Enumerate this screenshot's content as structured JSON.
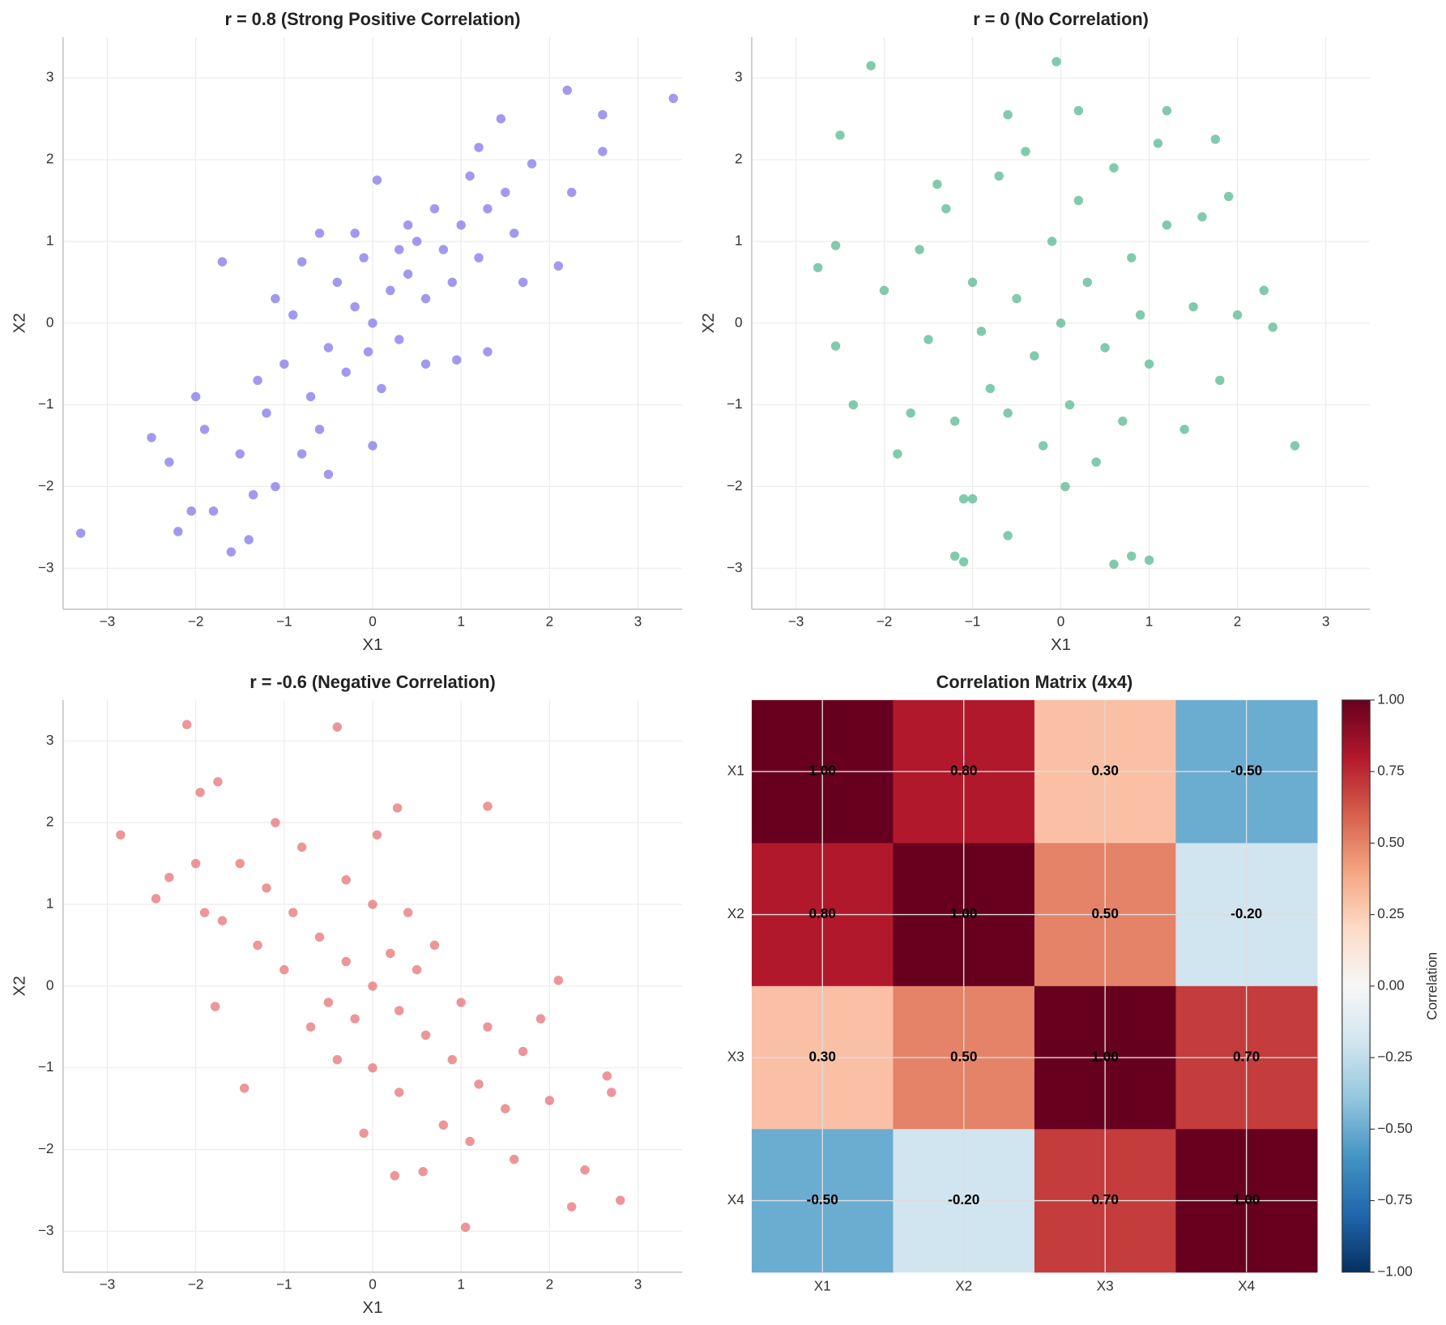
{
  "chart_data": [
    {
      "type": "scatter",
      "title": "r = 0.8 (Strong Positive Correlation)",
      "x_label": "X1",
      "y_label": "X2",
      "color": "#7b6ee8",
      "grid": true,
      "xlim": [
        -3.5,
        3.5
      ],
      "ylim": [
        -3.5,
        3.5
      ],
      "xticks": [
        {
          "value": -3,
          "label": "−3"
        },
        {
          "value": -2,
          "label": "−2"
        },
        {
          "value": -1,
          "label": "−1"
        },
        0,
        1,
        2,
        3
      ],
      "yticks": [
        {
          "value": -3,
          "label": "−3"
        },
        {
          "value": -2,
          "label": "−2"
        },
        {
          "value": -1,
          "label": "−1"
        },
        0,
        1,
        2,
        3
      ],
      "x": [
        -3.3,
        3.4,
        2.2,
        2.6,
        2.6,
        -1.6,
        -1.4,
        -1.7,
        -2.5,
        -2.3,
        -2.2,
        -2.05,
        -1.8,
        -2.0,
        1.45,
        1.2,
        2.1,
        0.05,
        -0.6,
        1.8,
        2.25,
        1.3,
        0.95,
        0.0,
        -0.5,
        -1.35,
        -1.1,
        -0.8,
        -1.0,
        -0.5,
        -0.2,
        0.0,
        0.2,
        0.4,
        0.6,
        0.8,
        1.0,
        1.2,
        1.5,
        -0.3,
        -0.7,
        -1.2,
        -1.5,
        0.3,
        0.5,
        0.7,
        -0.1,
        -0.4,
        -0.9,
        1.1,
        1.6,
        0.9,
        -1.3,
        -0.6,
        0.1,
        -0.2,
        0.6,
        1.7,
        -1.9,
        -0.8,
        0.3,
        -0.05,
        1.3,
        0.4,
        -1.1
      ],
      "values": [
        -2.57,
        2.75,
        2.85,
        2.55,
        2.1,
        -2.8,
        -2.65,
        0.75,
        -1.4,
        -1.7,
        -2.55,
        -2.3,
        -2.3,
        -0.9,
        2.5,
        2.15,
        0.7,
        1.75,
        1.1,
        1.95,
        1.6,
        -0.35,
        -0.45,
        -1.5,
        -1.85,
        -2.1,
        -2.0,
        0.75,
        -0.5,
        -0.3,
        0.2,
        0.0,
        0.4,
        0.6,
        0.3,
        0.9,
        1.2,
        0.8,
        1.6,
        -0.6,
        -0.9,
        -1.1,
        -1.6,
        -0.2,
        1.0,
        1.4,
        0.8,
        0.5,
        0.1,
        1.8,
        1.1,
        0.5,
        -0.7,
        -1.3,
        -0.8,
        1.1,
        -0.5,
        0.5,
        -1.3,
        -1.6,
        0.9,
        -0.35,
        1.4,
        1.2,
        0.3
      ]
    },
    {
      "type": "scatter",
      "title": "r = 0 (No Correlation)",
      "x_label": "X1",
      "y_label": "X2",
      "color": "#4db38a",
      "grid": true,
      "xlim": [
        -3.5,
        3.5
      ],
      "ylim": [
        -3.5,
        3.5
      ],
      "xticks": [
        {
          "value": -3,
          "label": "−3"
        },
        {
          "value": -2,
          "label": "−2"
        },
        {
          "value": -1,
          "label": "−1"
        },
        0,
        1,
        2,
        3
      ],
      "yticks": [
        {
          "value": -3,
          "label": "−3"
        },
        {
          "value": -2,
          "label": "−2"
        },
        {
          "value": -1,
          "label": "−1"
        },
        0,
        1,
        2,
        3
      ],
      "x": [
        -2.15,
        -0.05,
        -2.5,
        -2.75,
        2.65,
        -0.6,
        0.6,
        0.8,
        1.0,
        -1.2,
        -1.1,
        1.75,
        2.4,
        2.3,
        -2.35,
        -1.85,
        0.05,
        -1.1,
        -1.0,
        -0.6,
        0.2,
        1.2,
        -2.55,
        -2.55,
        1.9,
        0.0,
        0.3,
        -0.3,
        0.5,
        -0.5,
        0.8,
        -0.8,
        1.0,
        -1.0,
        1.2,
        -1.2,
        0.2,
        -0.2,
        1.5,
        -1.5,
        0.6,
        -0.7,
        1.4,
        -1.3,
        2.0,
        -2.0,
        0.1,
        -0.1,
        0.9,
        -0.9,
        1.8,
        -1.7,
        0.4,
        -0.4,
        1.1,
        -1.4,
        1.6,
        -1.6,
        0.7,
        -0.6
      ],
      "values": [
        3.15,
        3.2,
        2.3,
        0.68,
        -1.5,
        -2.6,
        -2.95,
        -2.85,
        -2.9,
        -2.85,
        -2.92,
        2.25,
        -0.05,
        0.4,
        -1.0,
        -1.6,
        -2.0,
        -2.15,
        -2.15,
        2.55,
        2.6,
        2.6,
        -0.28,
        0.95,
        1.55,
        0.0,
        0.5,
        -0.4,
        -0.3,
        0.3,
        0.8,
        -0.8,
        -0.5,
        0.5,
        1.2,
        -1.2,
        1.5,
        -1.5,
        0.2,
        -0.2,
        1.9,
        1.8,
        -1.3,
        1.4,
        0.1,
        0.4,
        -1.0,
        1.0,
        0.1,
        -0.1,
        -0.7,
        -1.1,
        -1.7,
        2.1,
        2.2,
        1.7,
        1.3,
        0.9,
        -1.2,
        -1.1
      ]
    },
    {
      "type": "scatter",
      "title": "r = -0.6 (Negative Correlation)",
      "x_label": "X1",
      "y_label": "X2",
      "color": "#e46a6e",
      "grid": true,
      "xlim": [
        -3.5,
        3.5
      ],
      "ylim": [
        -3.5,
        3.5
      ],
      "xticks": [
        {
          "value": -3,
          "label": "−3"
        },
        {
          "value": -2,
          "label": "−2"
        },
        {
          "value": -1,
          "label": "−1"
        },
        0,
        1,
        2,
        3
      ],
      "yticks": [
        {
          "value": -3,
          "label": "−3"
        },
        {
          "value": -2,
          "label": "−2"
        },
        {
          "value": -1,
          "label": "−1"
        },
        0,
        1,
        2,
        3
      ],
      "x": [
        -2.85,
        -2.1,
        -0.4,
        -1.95,
        -1.75,
        2.8,
        1.05,
        2.25,
        2.4,
        1.3,
        0.28,
        -1.45,
        -1.78,
        2.1,
        2.65,
        2.7,
        0.25,
        0.57,
        1.6,
        -2.45,
        -2.3,
        0.0,
        -0.3,
        0.3,
        -0.6,
        0.6,
        -0.9,
        0.9,
        -1.2,
        1.2,
        -1.5,
        1.5,
        -0.2,
        0.2,
        -0.5,
        0.5,
        -1.0,
        1.0,
        -0.8,
        0.8,
        -1.1,
        1.1,
        0.0,
        0.0,
        -1.3,
        1.3,
        0.4,
        -0.4,
        -1.7,
        1.7,
        0.7,
        -0.7,
        -0.3,
        0.3,
        2.0,
        -2.0,
        1.9,
        -1.9,
        -0.1,
        0.05
      ],
      "values": [
        1.85,
        3.2,
        3.17,
        2.37,
        2.5,
        -2.62,
        -2.95,
        -2.7,
        -2.25,
        2.2,
        2.18,
        -1.25,
        -0.25,
        0.07,
        -1.1,
        -1.3,
        -2.32,
        -2.27,
        -2.12,
        1.07,
        1.33,
        0.0,
        0.3,
        -0.3,
        0.6,
        -0.6,
        0.9,
        -0.9,
        1.2,
        -1.2,
        1.5,
        -1.5,
        -0.4,
        0.4,
        -0.2,
        0.2,
        0.2,
        -0.2,
        1.7,
        -1.7,
        2.0,
        -1.9,
        1.0,
        -1.0,
        0.5,
        -0.5,
        0.9,
        -0.9,
        0.8,
        -0.8,
        0.5,
        -0.5,
        1.3,
        -1.3,
        -1.4,
        1.5,
        -0.4,
        0.9,
        -1.8,
        1.85
      ]
    },
    {
      "type": "heatmap",
      "title": "Correlation Matrix (4x4)",
      "grid": true,
      "x_categories": [
        "X1",
        "X2",
        "X3",
        "X4"
      ],
      "y_categories": [
        "X1",
        "X2",
        "X3",
        "X4"
      ],
      "values": [
        [
          1,
          0.8,
          0.3,
          -0.5
        ],
        [
          0.8,
          1,
          0.5,
          -0.2
        ],
        [
          0.3,
          0.5,
          1,
          0.7
        ],
        [
          -0.5,
          -0.2,
          0.7,
          1
        ]
      ],
      "value_labels": [
        [
          "1.00",
          "0.80",
          "0.30",
          "-0.50"
        ],
        [
          "0.80",
          "1.00",
          "0.50",
          "-0.20"
        ],
        [
          "0.30",
          "0.50",
          "1.00",
          "0.70"
        ],
        [
          "-0.50",
          "-0.20",
          "0.70",
          "1.00"
        ]
      ],
      "colorbar_label": "Correlation",
      "clim": [
        -1,
        1
      ],
      "cticks": [
        {
          "value": -1,
          "label": "−1.00"
        },
        {
          "value": -0.75,
          "label": "−0.75"
        },
        {
          "value": -0.5,
          "label": "−0.50"
        },
        {
          "value": -0.25,
          "label": "−0.25"
        },
        {
          "value": 0,
          "label": "0.00"
        },
        {
          "value": 0.25,
          "label": "0.25"
        },
        {
          "value": 0.5,
          "label": "0.50"
        },
        {
          "value": 0.75,
          "label": "0.75"
        },
        {
          "value": 1,
          "label": "1.00"
        }
      ],
      "colormap": [
        "#053061",
        "#2166ac",
        "#4393c3",
        "#92c5de",
        "#d1e5f0",
        "#f7f7f7",
        "#fddbc7",
        "#f4a582",
        "#d6604d",
        "#b2182b",
        "#67001f"
      ]
    }
  ]
}
